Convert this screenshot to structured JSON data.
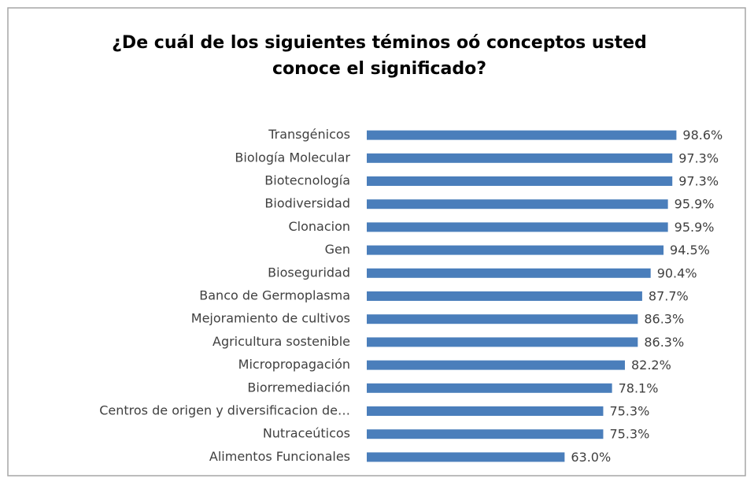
{
  "chart_data": {
    "type": "bar",
    "orientation": "horizontal",
    "title": [
      "¿De cuál de los siguientes téminos oó conceptos usted",
      "conoce el significado?"
    ],
    "categories": [
      "Transgénicos",
      "Biología Molecular",
      "Biotecnología",
      "Biodiversidad",
      "Clonacion",
      "Gen",
      "Bioseguridad",
      "Banco de Germoplasma",
      "Mejoramiento de cultivos",
      "Agricultura sostenible",
      "Micropropagación",
      "Biorremediación",
      "Centros de origen y diversificacion de…",
      "Nutraceúticos",
      "Alimentos Funcionales"
    ],
    "values": [
      98.6,
      97.3,
      97.3,
      95.9,
      95.9,
      94.5,
      90.4,
      87.7,
      86.3,
      86.3,
      82.2,
      78.1,
      75.3,
      75.3,
      63.0
    ],
    "value_labels": [
      "98.6%",
      "97.3%",
      "97.3%",
      "95.9%",
      "95.9%",
      "94.5%",
      "90.4%",
      "87.7%",
      "86.3%",
      "86.3%",
      "82.2%",
      "78.1%",
      "75.3%",
      "75.3%",
      "63.0%"
    ],
    "color": "#4a7ebb",
    "xlim": [
      0,
      100
    ]
  }
}
